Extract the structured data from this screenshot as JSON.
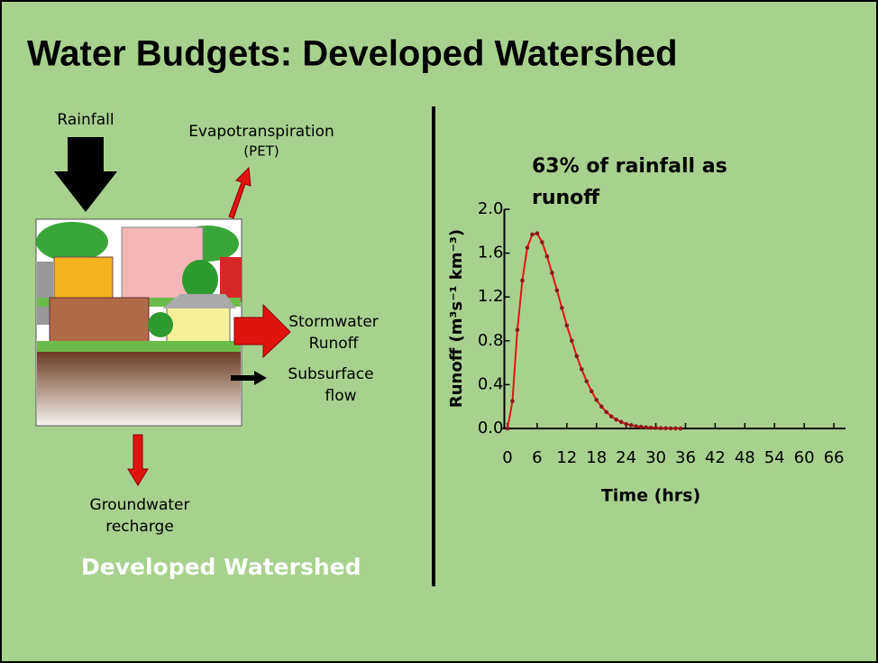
{
  "title": "Water Budgets: Developed Watershed",
  "diagram": {
    "rainfall": "Rainfall",
    "evapotranspiration": [
      "Evapotranspiration",
      "(PET)"
    ],
    "stormwater": [
      "Stormwater",
      "Runoff"
    ],
    "subsurface": [
      "Subsurface",
      "flow"
    ],
    "groundwater": [
      "Groundwater",
      "recharge"
    ],
    "caption": "Developed Watershed"
  },
  "chart_data": {
    "type": "line",
    "annotation": [
      "63% of rainfall as",
      "runoff"
    ],
    "x_label": "Time (hrs)",
    "y_label": "Runoff (m³s⁻¹ km⁻³)",
    "x": [
      0,
      1,
      2,
      3,
      4,
      5,
      6,
      7,
      8,
      9,
      10,
      11,
      12,
      13,
      14,
      15,
      16,
      17,
      18,
      19,
      20,
      21,
      22,
      23,
      24,
      25,
      26,
      27,
      28,
      29,
      30,
      31,
      32,
      33,
      34,
      35
    ],
    "values": [
      0,
      0.25,
      0.9,
      1.35,
      1.65,
      1.77,
      1.78,
      1.7,
      1.57,
      1.42,
      1.26,
      1.1,
      0.94,
      0.8,
      0.66,
      0.54,
      0.43,
      0.34,
      0.26,
      0.2,
      0.15,
      0.11,
      0.08,
      0.06,
      0.04,
      0.03,
      0.02,
      0.015,
      0.01,
      0.007,
      0.005,
      0.003,
      0.002,
      0.001,
      0.001,
      0
    ],
    "color": "#e0140f",
    "marker_color": "#8b1a1a",
    "xlim": [
      -1,
      68
    ],
    "xticks": [
      0,
      6,
      12,
      18,
      24,
      30,
      36,
      42,
      48,
      54,
      60,
      66
    ],
    "ylim": [
      0,
      2
    ],
    "yticks": [
      {
        "value": 0,
        "label": "0.0"
      },
      0.4,
      0.8,
      1.2,
      1.6,
      {
        "value": 2,
        "label": "2.0"
      }
    ]
  }
}
